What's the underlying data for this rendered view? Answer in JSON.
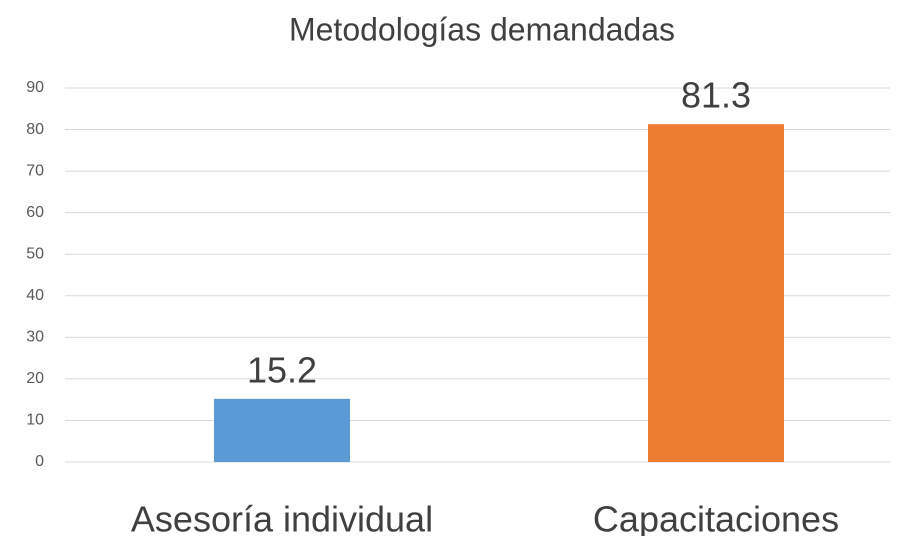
{
  "chart_data": {
    "type": "bar",
    "title": "Metodologías demandadas",
    "categories": [
      "Asesoría individual",
      "Capacitaciones"
    ],
    "values": [
      15.2,
      81.3
    ],
    "colors": [
      "#5b9bd5",
      "#ed7d31"
    ],
    "ylim": [
      0,
      90
    ],
    "yticks": [
      0,
      10,
      20,
      30,
      40,
      50,
      60,
      70,
      80,
      90
    ],
    "grid": true
  }
}
